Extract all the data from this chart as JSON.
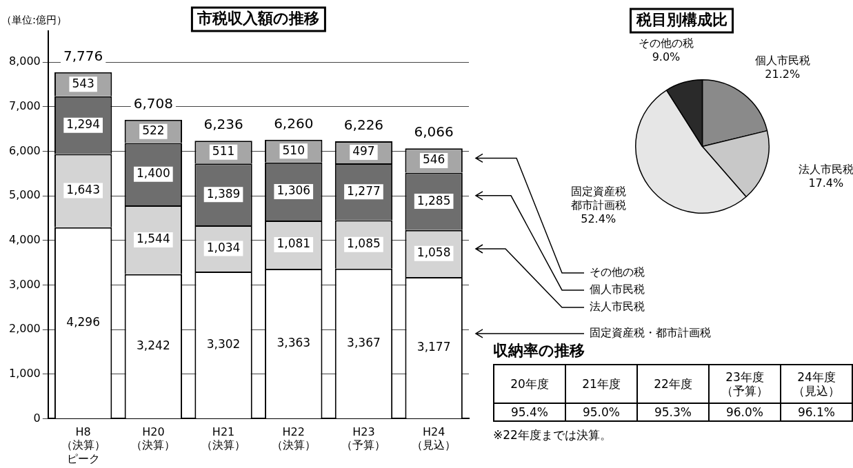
{
  "chart_data": [
    {
      "type": "bar",
      "title": "市税収入額の推移",
      "ylabel": "（単位:億円）",
      "categories": [
        "H8（決算）ピーク",
        "H20（決算）",
        "H21（決算）",
        "H22（決算）",
        "H23（予算）",
        "H24（見込）"
      ],
      "series": [
        {
          "name": "固定資産税・都市計画税",
          "color": "#ffffff",
          "values": [
            4296,
            3242,
            3302,
            3363,
            3367,
            3177
          ],
          "value_labels": [
            "4,296",
            "3,242",
            "3,302",
            "3,363",
            "3,367",
            "3,177"
          ]
        },
        {
          "name": "法人市民税",
          "color": "#d4d4d4",
          "values": [
            1643,
            1544,
            1034,
            1081,
            1085,
            1058
          ],
          "value_labels": [
            "1,643",
            "1,544",
            "1,034",
            "1,081",
            "1,085",
            "1,058"
          ]
        },
        {
          "name": "個人市民税",
          "color": "#6e6e6e",
          "values": [
            1294,
            1400,
            1389,
            1306,
            1277,
            1285
          ],
          "value_labels": [
            "1,294",
            "1,400",
            "1,389",
            "1,306",
            "1,277",
            "1,285"
          ]
        },
        {
          "name": "その他の税",
          "color": "#a6a6a6",
          "values": [
            543,
            522,
            511,
            510,
            497,
            546
          ],
          "value_labels": [
            "543",
            "522",
            "511",
            "510",
            "497",
            "546"
          ]
        }
      ],
      "stacked": true,
      "totals": [
        "7,776",
        "6,708",
        "6,236",
        "6,260",
        "6,226",
        "6,066"
      ],
      "ylim": [
        0,
        8700
      ],
      "yticks": [
        0,
        {
          "value": 1000,
          "label": "1,000"
        },
        {
          "value": 2000,
          "label": "2,000"
        },
        {
          "value": 3000,
          "label": "3,000"
        },
        {
          "value": 4000,
          "label": "4,000"
        },
        {
          "value": 5000,
          "label": "5,000"
        },
        {
          "value": 6000,
          "label": "6,000"
        },
        {
          "value": 7000,
          "label": "7,000"
        },
        {
          "value": 8000,
          "label": "8,000"
        }
      ],
      "grid": "y",
      "legend": "right"
    },
    {
      "type": "pie",
      "title": "税目別構成比",
      "categories": [
        "個人市民税",
        "法人市民税",
        "固定資産税都市計画税",
        "その他の税"
      ],
      "values": [
        21.2,
        17.4,
        52.4,
        9.0
      ],
      "colors": [
        "#8a8a8a",
        "#c8c8c8",
        "#e6e6e6",
        "#2a2a2a"
      ],
      "value_labels": [
        "21.2%",
        "17.4%",
        "52.4%",
        "9.0%"
      ]
    },
    {
      "type": "other",
      "title": "収納率の推移",
      "categories": [
        "20年度",
        "21年度",
        "22年度",
        "23年度（予算）",
        "24年度（見込）"
      ],
      "value_labels": [
        "95.4%",
        "95.0%",
        "95.3%",
        "96.0%",
        "96.1%"
      ],
      "annotations": [
        "※22年度までは決算。"
      ]
    }
  ]
}
